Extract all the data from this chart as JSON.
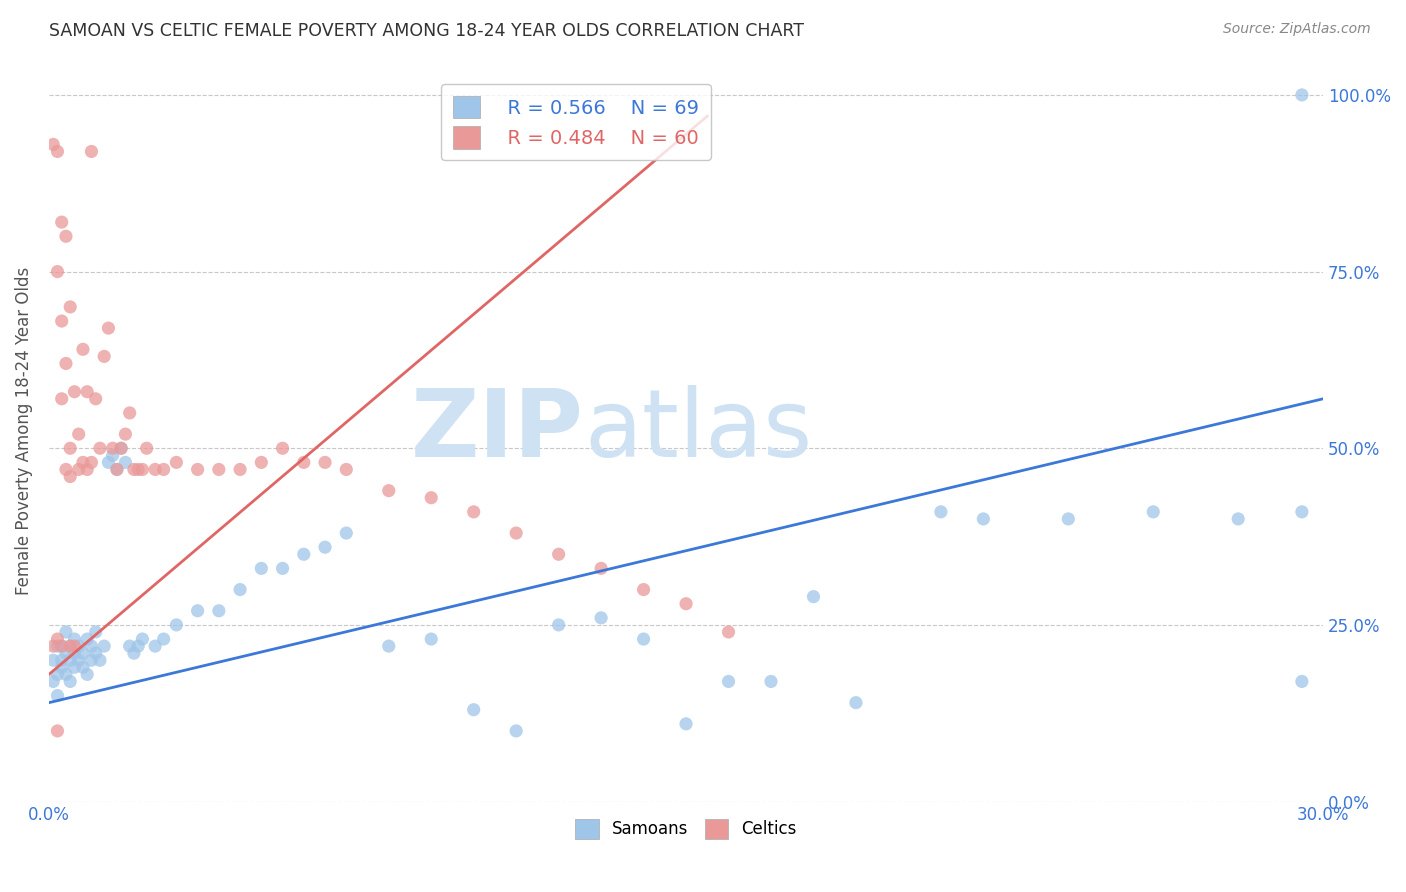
{
  "title": "SAMOAN VS CELTIC FEMALE POVERTY AMONG 18-24 YEAR OLDS CORRELATION CHART",
  "source": "Source: ZipAtlas.com",
  "ylabel": "Female Poverty Among 18-24 Year Olds",
  "xlim": [
    0.0,
    0.3
  ],
  "ylim": [
    0.0,
    1.05
  ],
  "yticks": [
    0.0,
    0.25,
    0.5,
    0.75,
    1.0
  ],
  "yticklabels_right": [
    "0.0%",
    "25.0%",
    "50.0%",
    "75.0%",
    "100.0%"
  ],
  "grid_color": "#c8c8c8",
  "background_color": "#ffffff",
  "samoan_color": "#9fc5e8",
  "celtic_color": "#ea9999",
  "samoan_line_color": "#3c78d8",
  "celtic_line_color": "#e06666",
  "legend_R_samoan": "R = 0.566",
  "legend_N_samoan": "N = 69",
  "legend_R_celtic": "R = 0.484",
  "legend_N_celtic": "N = 60",
  "watermark_zip": "ZIP",
  "watermark_atlas": "atlas",
  "watermark_color": "#cfe2f3",
  "samoan_line_x": [
    0.0,
    0.3
  ],
  "samoan_line_y": [
    0.14,
    0.57
  ],
  "celtic_line_x": [
    0.0,
    0.155
  ],
  "celtic_line_y": [
    0.18,
    0.97
  ],
  "samoan_scatter_x": [
    0.001,
    0.001,
    0.002,
    0.002,
    0.002,
    0.003,
    0.003,
    0.003,
    0.004,
    0.004,
    0.004,
    0.005,
    0.005,
    0.005,
    0.006,
    0.006,
    0.006,
    0.007,
    0.007,
    0.008,
    0.008,
    0.009,
    0.009,
    0.01,
    0.01,
    0.011,
    0.011,
    0.012,
    0.013,
    0.014,
    0.015,
    0.016,
    0.017,
    0.018,
    0.019,
    0.02,
    0.021,
    0.022,
    0.025,
    0.027,
    0.03,
    0.035,
    0.04,
    0.045,
    0.05,
    0.055,
    0.06,
    0.065,
    0.07,
    0.08,
    0.09,
    0.1,
    0.11,
    0.12,
    0.13,
    0.14,
    0.15,
    0.16,
    0.17,
    0.18,
    0.19,
    0.21,
    0.22,
    0.24,
    0.26,
    0.28,
    0.295,
    0.295,
    0.295
  ],
  "samoan_scatter_y": [
    0.2,
    0.17,
    0.22,
    0.18,
    0.15,
    0.2,
    0.22,
    0.19,
    0.21,
    0.18,
    0.24,
    0.2,
    0.22,
    0.17,
    0.21,
    0.19,
    0.23,
    0.2,
    0.22,
    0.19,
    0.21,
    0.23,
    0.18,
    0.2,
    0.22,
    0.21,
    0.24,
    0.2,
    0.22,
    0.48,
    0.49,
    0.47,
    0.5,
    0.48,
    0.22,
    0.21,
    0.22,
    0.23,
    0.22,
    0.23,
    0.25,
    0.27,
    0.27,
    0.3,
    0.33,
    0.33,
    0.35,
    0.36,
    0.38,
    0.22,
    0.23,
    0.13,
    0.1,
    0.25,
    0.26,
    0.23,
    0.11,
    0.17,
    0.17,
    0.29,
    0.14,
    0.41,
    0.4,
    0.4,
    0.41,
    0.4,
    0.41,
    0.17,
    1.0
  ],
  "celtic_scatter_x": [
    0.001,
    0.001,
    0.002,
    0.002,
    0.003,
    0.003,
    0.003,
    0.004,
    0.004,
    0.005,
    0.005,
    0.005,
    0.006,
    0.006,
    0.007,
    0.007,
    0.008,
    0.008,
    0.009,
    0.009,
    0.01,
    0.01,
    0.011,
    0.012,
    0.013,
    0.014,
    0.015,
    0.016,
    0.017,
    0.018,
    0.019,
    0.02,
    0.021,
    0.022,
    0.023,
    0.025,
    0.027,
    0.03,
    0.035,
    0.04,
    0.045,
    0.05,
    0.055,
    0.06,
    0.065,
    0.07,
    0.08,
    0.09,
    0.1,
    0.11,
    0.12,
    0.13,
    0.14,
    0.15,
    0.16,
    0.003,
    0.002,
    0.002,
    0.004,
    0.005
  ],
  "celtic_scatter_y": [
    0.93,
    0.22,
    0.92,
    0.23,
    0.68,
    0.57,
    0.22,
    0.62,
    0.47,
    0.5,
    0.46,
    0.22,
    0.58,
    0.22,
    0.52,
    0.47,
    0.64,
    0.48,
    0.58,
    0.47,
    0.92,
    0.48,
    0.57,
    0.5,
    0.63,
    0.67,
    0.5,
    0.47,
    0.5,
    0.52,
    0.55,
    0.47,
    0.47,
    0.47,
    0.5,
    0.47,
    0.47,
    0.48,
    0.47,
    0.47,
    0.47,
    0.48,
    0.5,
    0.48,
    0.48,
    0.47,
    0.44,
    0.43,
    0.41,
    0.38,
    0.35,
    0.33,
    0.3,
    0.28,
    0.24,
    0.82,
    0.75,
    0.1,
    0.8,
    0.7
  ]
}
